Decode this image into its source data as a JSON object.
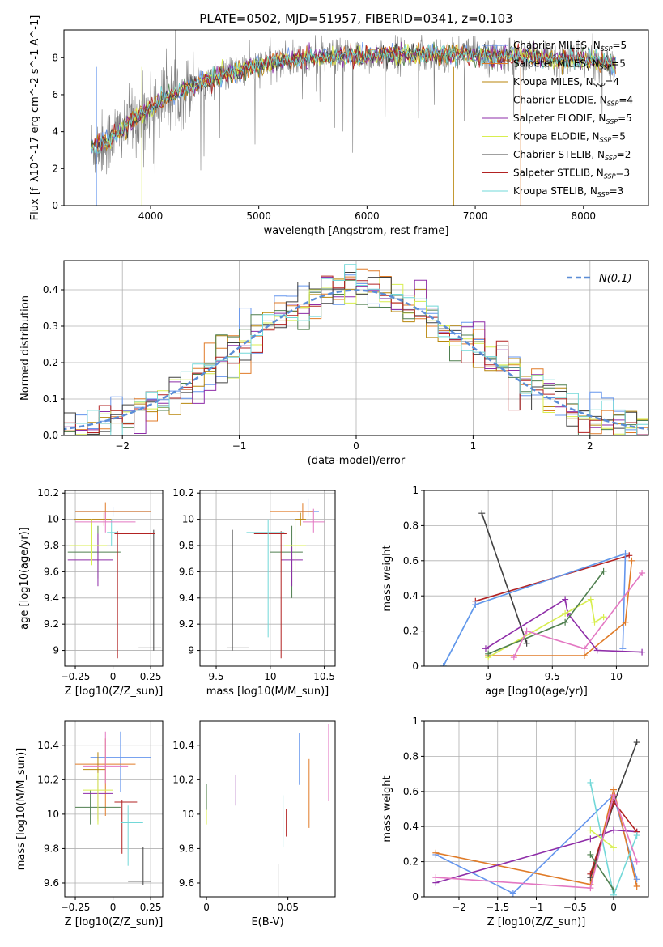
{
  "figure": {
    "title": "PLATE=0502, MJD=51957, FIBERID=0341, z=0.103"
  },
  "colors": {
    "series": [
      "#6495ed",
      "#e07b28",
      "#b8860b",
      "#4f7f4f",
      "#8e2da8",
      "#d8ee4f",
      "#404040",
      "#b22222",
      "#72d8d8"
    ],
    "pink": "#e377c2",
    "normal_curve": "#5b8dd6",
    "data_grey": "#808080"
  },
  "chart_data": [
    {
      "type": "line",
      "name": "spectrum",
      "xlabel": "wavelength [Angstrom, rest frame]",
      "ylabel": "Flux [f_λ10^-17 erg cm^-2 s^-1 A^-1]",
      "xlim": [
        3200,
        8600
      ],
      "ylim": [
        0,
        9.5
      ],
      "xticks": [
        4000,
        5000,
        6000,
        7000,
        8000
      ],
      "yticks": [
        0,
        2,
        4,
        6,
        8
      ],
      "grid": false,
      "legend_position": "top-right",
      "legend": [
        "Chabrier MILES, N_SSP=5",
        "Salpeter MILES, N_SSP=5",
        "Kroupa MILES, N_SSP=4",
        "Chabrier ELODIE, N_SSP=4",
        "Salpeter ELODIE, N_SSP=5",
        "Kroupa ELODIE, N_SSP=5",
        "Chabrier STELIB, N_SSP=2",
        "Salpeter STELIB, N_SSP=3",
        "Kroupa STELIB, N_SSP=3"
      ],
      "model_continuum": {
        "x": [
          3450,
          3600,
          3800,
          4000,
          4200,
          4400,
          4600,
          4800,
          5000,
          5200,
          5400,
          5600,
          5800,
          6000,
          6200,
          6400,
          6600,
          6800,
          7000,
          7200,
          7400,
          7600,
          7800,
          8000,
          8300
        ],
        "y": [
          3.1,
          3.5,
          4.5,
          5.3,
          6.0,
          6.5,
          6.9,
          7.3,
          7.6,
          7.8,
          7.9,
          8.0,
          8.1,
          8.1,
          8.15,
          8.15,
          8.2,
          8.2,
          8.15,
          8.1,
          8.1,
          8.0,
          7.9,
          7.9,
          7.7
        ]
      }
    },
    {
      "type": "bar",
      "name": "residual-histogram",
      "xlabel": "(data-model)/error",
      "ylabel": "Normed distribution",
      "xlim": [
        -2.5,
        2.5
      ],
      "ylim": [
        0,
        0.48
      ],
      "xticks": [
        -2,
        -1,
        0,
        1,
        2
      ],
      "yticks": [
        0.0,
        0.1,
        0.2,
        0.3,
        0.4
      ],
      "grid": true,
      "legend_position": "top-right",
      "legend": [
        "N(0,1)"
      ],
      "bin_width": 0.1
    },
    {
      "type": "scatter",
      "name": "age-vs-Z",
      "xlabel": "Z [log10(Z/Z_sun)]",
      "ylabel": "age [log10(age/yr)]",
      "xlim": [
        -0.32,
        0.33
      ],
      "ylim": [
        8.88,
        10.22
      ],
      "xticks": [
        -0.25,
        0.0,
        0.25
      ],
      "yticks": [
        9.0,
        9.2,
        9.4,
        9.6,
        9.8,
        10.0,
        10.2
      ],
      "grid": true
    },
    {
      "type": "scatter",
      "name": "age-vs-mass",
      "xlabel": "mass [log10(M/M_sun)]",
      "ylabel": "",
      "xlim": [
        9.35,
        10.6
      ],
      "ylim": [
        8.88,
        10.22
      ],
      "xticks": [
        9.5,
        10.0,
        10.5
      ],
      "yticks": [
        9.0,
        9.2,
        9.4,
        9.6,
        9.8,
        10.0,
        10.2
      ],
      "grid": true
    },
    {
      "type": "line",
      "name": "massweight-vs-age",
      "xlabel": "age [log10(age/yr)]",
      "ylabel": "mass weight",
      "xlim": [
        8.5,
        10.25
      ],
      "ylim": [
        0,
        1
      ],
      "xticks": [
        9.0,
        9.5,
        10.0
      ],
      "yticks": [
        0.0,
        0.2,
        0.4,
        0.6,
        0.8,
        1.0
      ],
      "grid": true
    },
    {
      "type": "scatter",
      "name": "mass-vs-Z",
      "xlabel": "Z [log10(Z/Z_sun)]",
      "ylabel": "mass [log10(M/M_sun)]",
      "xlim": [
        -0.32,
        0.33
      ],
      "ylim": [
        9.52,
        10.54
      ],
      "xticks": [
        -0.25,
        0.0,
        0.25
      ],
      "yticks": [
        9.6,
        9.8,
        10.0,
        10.2,
        10.4
      ],
      "grid": true
    },
    {
      "type": "scatter",
      "name": "mass-vs-EBV",
      "xlabel": "E(B-V)",
      "ylabel": "",
      "xlim": [
        -0.004,
        0.079
      ],
      "ylim": [
        9.52,
        10.54
      ],
      "xticks": [
        0.0,
        0.05
      ],
      "yticks": [
        9.6,
        9.8,
        10.0,
        10.2,
        10.4
      ],
      "grid": false
    },
    {
      "type": "line",
      "name": "massweight-vs-Z",
      "xlabel": "Z [log10(Z/Z_sun)]",
      "ylabel": "mass weight",
      "xlim": [
        -2.45,
        0.45
      ],
      "ylim": [
        0,
        1
      ],
      "xticks": [
        -2.0,
        -1.5,
        -1.0,
        -0.5,
        0.0
      ],
      "yticks": [
        0.0,
        0.2,
        0.4,
        0.6,
        0.8,
        1.0
      ],
      "grid": true
    }
  ]
}
